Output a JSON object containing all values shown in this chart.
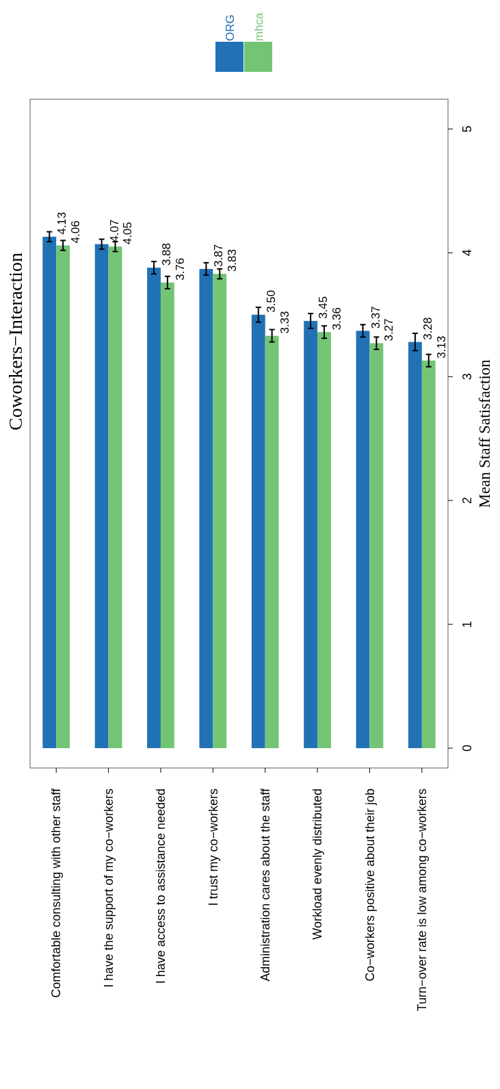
{
  "chart_data": {
    "type": "bar",
    "title": "Coworkers−Interaction",
    "ylabel": "Mean Staff Satisfaction",
    "categories": [
      "Comfortable consulting with other staff",
      "I have the support of my co−workers",
      "I have access to assistance needed",
      "I trust my co−workers",
      "Administration cares about the staff",
      "Workload evenly distributed",
      "Co−workers positive about their job",
      "Turn−over rate is low among co−workers"
    ],
    "series": [
      {
        "name": "ORG",
        "color": "#2171b5",
        "values": [
          4.13,
          4.07,
          3.88,
          3.87,
          3.5,
          3.45,
          3.37,
          3.28
        ],
        "errors": [
          0.04,
          0.04,
          0.05,
          0.05,
          0.06,
          0.06,
          0.05,
          0.07
        ],
        "value_labels": [
          "4.13",
          "4.07",
          "3.88",
          "3.87",
          "3.50",
          "3.45",
          "3.37",
          "3.28"
        ]
      },
      {
        "name": "mhca",
        "color": "#74c476",
        "values": [
          4.06,
          4.05,
          3.76,
          3.83,
          3.33,
          3.36,
          3.27,
          3.13
        ],
        "errors": [
          0.04,
          0.04,
          0.05,
          0.04,
          0.05,
          0.05,
          0.05,
          0.05
        ],
        "value_labels": [
          "4.06",
          "4.05",
          "3.76",
          "3.83",
          "3.33",
          "3.36",
          "3.27",
          "3.13"
        ]
      }
    ],
    "ylim": [
      -0.16,
      5.24
    ],
    "yticks": [
      0,
      1,
      2,
      3,
      4,
      5
    ],
    "legend": "top right",
    "grid": false
  }
}
